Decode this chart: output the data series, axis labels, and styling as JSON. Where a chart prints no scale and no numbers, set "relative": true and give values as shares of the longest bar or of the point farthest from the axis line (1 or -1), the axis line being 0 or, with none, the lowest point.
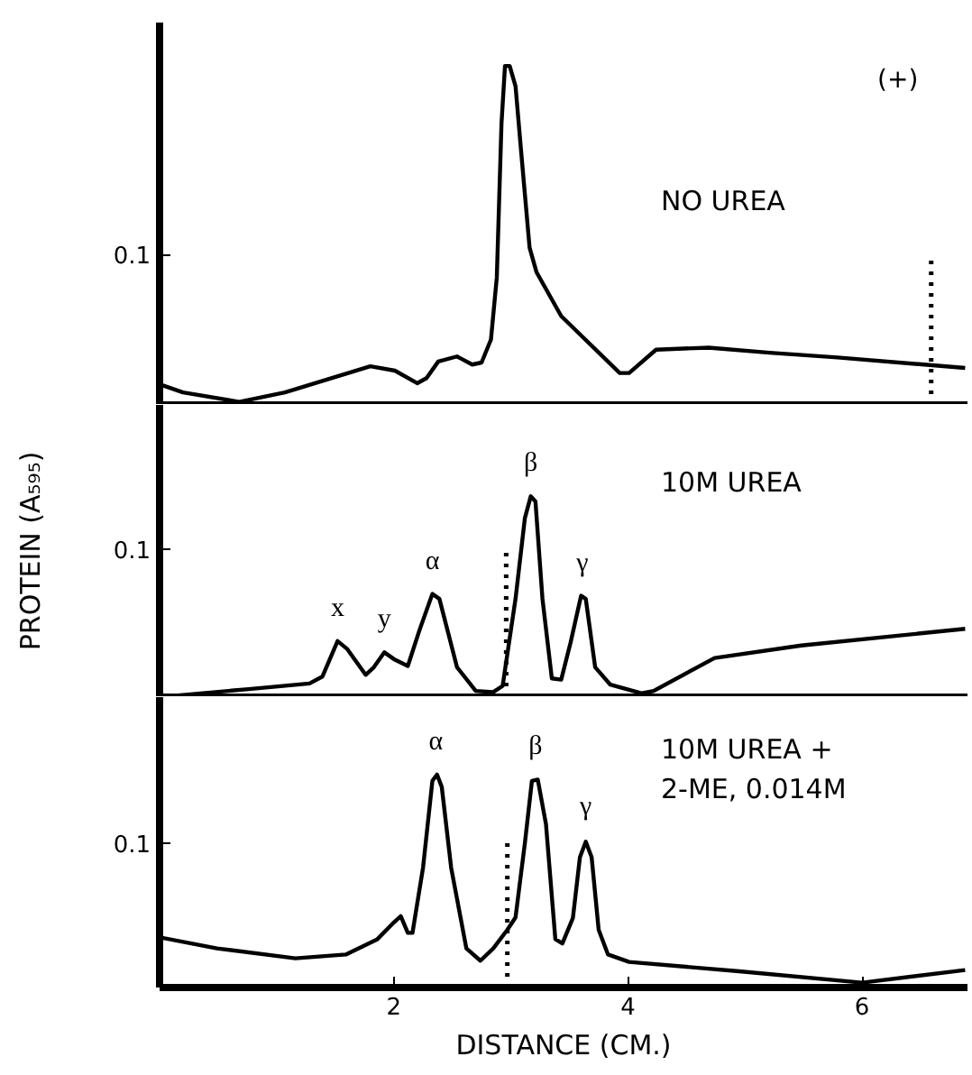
{
  "chart_data": [
    {
      "type": "line",
      "title": "NO UREA",
      "relative": true,
      "xlim": [
        0,
        6.9
      ],
      "xticks": [
        2,
        4,
        6
      ],
      "tick_labels": false,
      "grid": false,
      "marker": "none",
      "line_style": "solid",
      "x": [
        0.0,
        0.2,
        0.68,
        1.07,
        1.8,
        2.01,
        2.2,
        2.28,
        2.38,
        2.54,
        2.67,
        2.75,
        2.83,
        2.88,
        2.92,
        2.95,
        2.99,
        3.04,
        3.09,
        3.16,
        3.22,
        3.43,
        3.93,
        4.01,
        4.24,
        4.69,
        5.21,
        5.79,
        6.88
      ],
      "series": [
        {
          "color": "#000000",
          "values": [
            0.061,
            0.037,
            0.009,
            0.037,
            0.114,
            0.101,
            0.064,
            0.079,
            0.128,
            0.143,
            0.119,
            0.125,
            0.193,
            0.376,
            0.83,
            1.0,
            1.0,
            0.94,
            0.739,
            0.464,
            0.391,
            0.262,
            0.094,
            0.094,
            0.163,
            0.169,
            0.154,
            0.14,
            0.109
          ]
        }
      ],
      "annotations": [
        "0.1",
        "(+)"
      ],
      "ref_lines": [
        {
          "axis": "x",
          "value": 6.59,
          "line_style": "dotted",
          "color": "#000000"
        }
      ]
    },
    {
      "type": "line",
      "title": "10M UREA",
      "relative": true,
      "xlim": [
        0,
        6.9
      ],
      "xticks": [
        2,
        4,
        6
      ],
      "tick_labels": false,
      "ylabel": "PROTEIN (A₅₉₅)",
      "grid": false,
      "marker": "none",
      "line_style": "solid",
      "x": [
        0.0,
        0.76,
        1.28,
        1.39,
        1.52,
        1.6,
        1.76,
        1.83,
        1.92,
        2.01,
        2.12,
        2.22,
        2.33,
        2.39,
        2.54,
        2.7,
        2.85,
        2.93,
        3.04,
        3.12,
        3.17,
        3.21,
        3.27,
        3.35,
        3.43,
        3.51,
        3.6,
        3.64,
        3.72,
        3.85,
        4.12,
        4.22,
        4.74,
        5.48,
        6.88
      ],
      "series": [
        {
          "color": "#000000",
          "values": [
            0.0,
            0.04,
            0.068,
            0.102,
            0.279,
            0.241,
            0.111,
            0.149,
            0.223,
            0.186,
            0.155,
            0.334,
            0.514,
            0.489,
            0.149,
            0.031,
            0.025,
            0.056,
            0.49,
            0.892,
            1.0,
            0.975,
            0.49,
            0.093,
            0.087,
            0.272,
            0.505,
            0.489,
            0.149,
            0.062,
            0.019,
            0.031,
            0.195,
            0.257,
            0.34
          ]
        }
      ],
      "annotations": [
        "0.1",
        {
          "text": "x",
          "x": 1.52,
          "y": 0.279
        },
        {
          "text": "y",
          "x": 1.92,
          "y": 0.223
        },
        {
          "text": "α",
          "x": 2.33,
          "y": 0.514
        },
        {
          "text": "β",
          "x": 3.17,
          "y": 1.0
        },
        {
          "text": "γ",
          "x": 3.61,
          "y": 0.505
        }
      ],
      "ref_lines": [
        {
          "axis": "x",
          "value": 2.96,
          "line_style": "dotted",
          "color": "#000000"
        }
      ]
    },
    {
      "type": "line",
      "title": "10M UREA +\n2-ME, 0.014M",
      "relative": true,
      "xlim": [
        0,
        6.9
      ],
      "xticks": [
        2,
        4,
        6
      ],
      "tick_labels": "x",
      "xlabel": "DISTANCE (CM.)",
      "grid": false,
      "marker": "none",
      "line_style": "solid",
      "x": [
        0.0,
        0.49,
        1.16,
        1.59,
        1.86,
        1.99,
        2.06,
        2.12,
        2.16,
        2.25,
        2.33,
        2.37,
        2.41,
        2.49,
        2.62,
        2.74,
        2.85,
        2.97,
        3.04,
        3.12,
        3.18,
        3.23,
        3.3,
        3.38,
        3.44,
        3.53,
        3.59,
        3.64,
        3.69,
        3.75,
        3.83,
        4.01,
        4.95,
        6.0,
        6.88
      ],
      "series": [
        {
          "color": "#000000",
          "values": [
            0.236,
            0.184,
            0.137,
            0.155,
            0.227,
            0.3,
            0.335,
            0.257,
            0.257,
            0.563,
            0.971,
            1.0,
            0.942,
            0.563,
            0.184,
            0.126,
            0.184,
            0.271,
            0.329,
            0.679,
            0.971,
            0.977,
            0.767,
            0.227,
            0.207,
            0.327,
            0.612,
            0.685,
            0.612,
            0.271,
            0.155,
            0.12,
            0.076,
            0.023,
            0.082
          ]
        }
      ],
      "annotations": [
        "0.1",
        {
          "text": "α",
          "x": 2.36,
          "y": 1.0
        },
        {
          "text": "β",
          "x": 3.21,
          "y": 0.977
        },
        {
          "text": "γ",
          "x": 3.64,
          "y": 0.694
        }
      ],
      "ref_lines": [
        {
          "axis": "x",
          "value": 2.97,
          "line_style": "dotted",
          "color": "#000000"
        }
      ]
    }
  ]
}
